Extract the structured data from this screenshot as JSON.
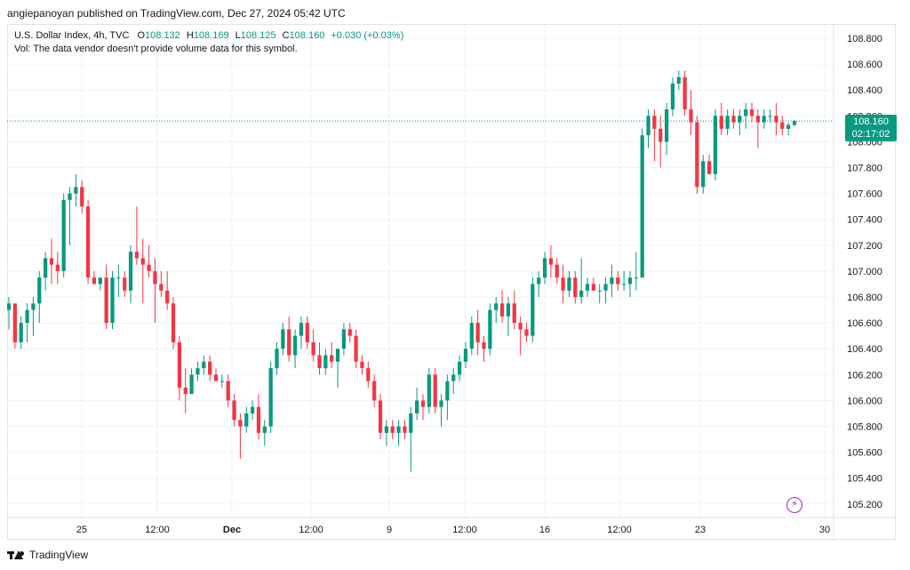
{
  "credit": "angiepanoyan published on TradingView.com, Dec 27, 2024 05:42 UTC",
  "legend": {
    "symbol": "U.S. Dollar Index, 4h, TVC",
    "o_label": "O",
    "o_value": "108.132",
    "h_label": "H",
    "h_value": "108.169",
    "l_label": "L",
    "l_value": "108.125",
    "c_label": "C",
    "c_value": "108.160",
    "change": "+0.030 (+0.03%)",
    "vol_note": "Vol: The data vendor doesn't provide volume data for this symbol."
  },
  "price_tag": {
    "price": "108.160",
    "countdown": "02:17:02"
  },
  "footer": {
    "brand": "TradingView"
  },
  "colors": {
    "up": "#089981",
    "down": "#f23645",
    "grid": "#f0f3fa",
    "text": "#131722"
  },
  "icons": {
    "bolt": "lightning-icon"
  },
  "chart_data": {
    "type": "candlestick",
    "symbol": "U.S. Dollar Index",
    "interval": "4h",
    "ylim": [
      105.1,
      108.9
    ],
    "y_ticks": [
      "108.800",
      "108.600",
      "108.400",
      "108.200",
      "108.000",
      "107.800",
      "107.600",
      "107.400",
      "107.200",
      "107.000",
      "106.800",
      "106.600",
      "106.400",
      "106.200",
      "106.000",
      "105.800",
      "105.600",
      "105.400",
      "105.200"
    ],
    "x_tick_labels": [
      "25",
      "12:00",
      "Dec",
      "12:00",
      "9",
      "12:00",
      "16",
      "12:00",
      "23",
      "30"
    ],
    "last_price": 108.16,
    "candles": [
      [
        106.7,
        106.8,
        106.55,
        106.75
      ],
      [
        106.75,
        106.75,
        106.4,
        106.45
      ],
      [
        106.45,
        106.65,
        106.4,
        106.6
      ],
      [
        106.6,
        106.75,
        106.45,
        106.7
      ],
      [
        106.7,
        106.8,
        106.5,
        106.75
      ],
      [
        106.75,
        107.0,
        106.6,
        106.95
      ],
      [
        106.95,
        107.15,
        106.85,
        107.1
      ],
      [
        107.1,
        107.25,
        106.9,
        107.05
      ],
      [
        107.05,
        107.15,
        106.9,
        107.0
      ],
      [
        107.0,
        107.6,
        106.95,
        107.55
      ],
      [
        107.55,
        107.65,
        107.2,
        107.6
      ],
      [
        107.6,
        107.75,
        107.5,
        107.65
      ],
      [
        107.65,
        107.7,
        107.45,
        107.5
      ],
      [
        107.5,
        107.55,
        106.9,
        106.95
      ],
      [
        106.95,
        107.0,
        106.9,
        106.9
      ],
      [
        106.9,
        106.95,
        106.85,
        106.95
      ],
      [
        106.95,
        107.05,
        106.55,
        106.6
      ],
      [
        106.6,
        107.0,
        106.55,
        106.95
      ],
      [
        106.95,
        107.05,
        106.8,
        106.95
      ],
      [
        106.95,
        107.0,
        106.8,
        106.85
      ],
      [
        106.85,
        107.2,
        106.75,
        107.15
      ],
      [
        107.15,
        107.5,
        107.05,
        107.1
      ],
      [
        107.1,
        107.25,
        106.75,
        107.05
      ],
      [
        107.05,
        107.2,
        106.95,
        107.0
      ],
      [
        107.0,
        107.1,
        106.6,
        106.9
      ],
      [
        106.9,
        107.0,
        106.8,
        106.85
      ],
      [
        106.85,
        107.0,
        106.7,
        106.75
      ],
      [
        106.75,
        106.8,
        106.4,
        106.45
      ],
      [
        106.45,
        106.5,
        106.0,
        106.1
      ],
      [
        106.1,
        106.25,
        105.9,
        106.05
      ],
      [
        106.05,
        106.25,
        106.05,
        106.2
      ],
      [
        106.2,
        106.3,
        106.15,
        106.25
      ],
      [
        106.25,
        106.35,
        106.2,
        106.3
      ],
      [
        106.3,
        106.35,
        106.15,
        106.2
      ],
      [
        106.2,
        106.25,
        106.15,
        106.15
      ],
      [
        106.15,
        106.2,
        106.1,
        106.15
      ],
      [
        106.15,
        106.2,
        105.95,
        106.0
      ],
      [
        106.0,
        106.05,
        105.8,
        105.85
      ],
      [
        105.85,
        105.9,
        105.55,
        105.8
      ],
      [
        105.8,
        105.95,
        105.75,
        105.9
      ],
      [
        105.9,
        106.0,
        105.85,
        105.95
      ],
      [
        105.95,
        106.05,
        105.7,
        105.75
      ],
      [
        105.75,
        105.85,
        105.65,
        105.8
      ],
      [
        105.8,
        106.3,
        105.75,
        106.25
      ],
      [
        106.25,
        106.45,
        106.2,
        106.4
      ],
      [
        106.4,
        106.6,
        106.35,
        106.55
      ],
      [
        106.55,
        106.65,
        106.3,
        106.35
      ],
      [
        106.35,
        106.55,
        106.25,
        106.5
      ],
      [
        106.5,
        106.65,
        106.4,
        106.6
      ],
      [
        106.6,
        106.65,
        106.4,
        106.45
      ],
      [
        106.45,
        106.55,
        106.3,
        106.35
      ],
      [
        106.35,
        106.45,
        106.2,
        106.25
      ],
      [
        106.25,
        106.4,
        106.2,
        106.35
      ],
      [
        106.35,
        106.45,
        106.25,
        106.3
      ],
      [
        106.3,
        106.4,
        106.1,
        106.4
      ],
      [
        106.4,
        106.6,
        106.35,
        106.55
      ],
      [
        106.55,
        106.6,
        106.45,
        106.5
      ],
      [
        106.5,
        106.55,
        106.25,
        106.3
      ],
      [
        106.3,
        106.35,
        106.2,
        106.25
      ],
      [
        106.25,
        106.3,
        106.1,
        106.15
      ],
      [
        106.15,
        106.2,
        105.95,
        106.0
      ],
      [
        106.0,
        106.05,
        105.7,
        105.75
      ],
      [
        105.75,
        105.85,
        105.65,
        105.8
      ],
      [
        105.8,
        105.85,
        105.7,
        105.75
      ],
      [
        105.75,
        105.85,
        105.65,
        105.8
      ],
      [
        105.8,
        105.85,
        105.7,
        105.75
      ],
      [
        105.75,
        105.95,
        105.45,
        105.9
      ],
      [
        105.9,
        106.1,
        105.85,
        106.0
      ],
      [
        106.0,
        106.05,
        105.85,
        105.95
      ],
      [
        105.95,
        106.25,
        105.9,
        106.2
      ],
      [
        106.2,
        106.25,
        105.9,
        105.95
      ],
      [
        105.95,
        106.05,
        105.8,
        106.0
      ],
      [
        106.0,
        106.2,
        105.85,
        106.15
      ],
      [
        106.15,
        106.25,
        106.05,
        106.2
      ],
      [
        106.2,
        106.35,
        106.15,
        106.3
      ],
      [
        106.3,
        106.45,
        106.25,
        106.4
      ],
      [
        106.4,
        106.65,
        106.35,
        106.6
      ],
      [
        106.6,
        106.7,
        106.35,
        106.45
      ],
      [
        106.45,
        106.5,
        106.3,
        106.4
      ],
      [
        106.4,
        106.75,
        106.35,
        106.7
      ],
      [
        106.7,
        106.8,
        106.6,
        106.75
      ],
      [
        106.75,
        106.85,
        106.6,
        106.65
      ],
      [
        106.65,
        106.8,
        106.5,
        106.75
      ],
      [
        106.75,
        106.85,
        106.55,
        106.6
      ],
      [
        106.6,
        106.65,
        106.35,
        106.55
      ],
      [
        106.55,
        106.6,
        106.45,
        106.5
      ],
      [
        106.5,
        106.95,
        106.45,
        106.9
      ],
      [
        106.9,
        107.0,
        106.8,
        106.95
      ],
      [
        106.95,
        107.15,
        106.9,
        107.1
      ],
      [
        107.1,
        107.2,
        106.95,
        107.05
      ],
      [
        107.05,
        107.1,
        106.9,
        106.95
      ],
      [
        106.95,
        107.05,
        106.75,
        106.85
      ],
      [
        106.85,
        107.0,
        106.8,
        106.95
      ],
      [
        106.95,
        107.0,
        106.75,
        106.8
      ],
      [
        106.8,
        107.1,
        106.75,
        106.85
      ],
      [
        106.85,
        106.95,
        106.8,
        106.9
      ],
      [
        106.9,
        106.95,
        106.85,
        106.85
      ],
      [
        106.85,
        106.9,
        106.75,
        106.85
      ],
      [
        106.85,
        106.95,
        106.75,
        106.9
      ],
      [
        106.9,
        107.05,
        106.8,
        106.95
      ],
      [
        106.95,
        107.0,
        106.85,
        106.9
      ],
      [
        106.9,
        107.0,
        106.85,
        106.9
      ],
      [
        106.9,
        107.0,
        106.8,
        106.95
      ],
      [
        106.95,
        107.15,
        106.85,
        106.95
      ],
      [
        106.95,
        108.1,
        106.95,
        108.05
      ],
      [
        108.05,
        108.25,
        107.95,
        108.2
      ],
      [
        108.2,
        108.25,
        107.85,
        108.1
      ],
      [
        108.1,
        108.2,
        107.8,
        108.0
      ],
      [
        108.0,
        108.3,
        107.9,
        108.25
      ],
      [
        108.25,
        108.5,
        108.2,
        108.45
      ],
      [
        108.45,
        108.55,
        108.4,
        108.5
      ],
      [
        108.5,
        108.55,
        108.2,
        108.25
      ],
      [
        108.25,
        108.4,
        108.05,
        108.15
      ],
      [
        108.15,
        108.2,
        107.6,
        107.65
      ],
      [
        107.65,
        107.9,
        107.6,
        107.85
      ],
      [
        107.85,
        107.9,
        107.75,
        107.75
      ],
      [
        107.75,
        108.25,
        107.7,
        108.2
      ],
      [
        108.2,
        108.3,
        108.05,
        108.1
      ],
      [
        108.1,
        108.25,
        108.05,
        108.2
      ],
      [
        108.2,
        108.25,
        108.1,
        108.15
      ],
      [
        108.15,
        108.25,
        108.05,
        108.2
      ],
      [
        108.2,
        108.3,
        108.1,
        108.25
      ],
      [
        108.25,
        108.3,
        108.15,
        108.2
      ],
      [
        108.2,
        108.25,
        107.95,
        108.15
      ],
      [
        108.15,
        108.25,
        108.1,
        108.2
      ],
      [
        108.2,
        108.25,
        108.15,
        108.2
      ],
      [
        108.2,
        108.3,
        108.05,
        108.15
      ],
      [
        108.15,
        108.2,
        108.05,
        108.1
      ],
      [
        108.1,
        108.15,
        108.05,
        108.13
      ],
      [
        108.13,
        108.17,
        108.12,
        108.16
      ]
    ]
  }
}
